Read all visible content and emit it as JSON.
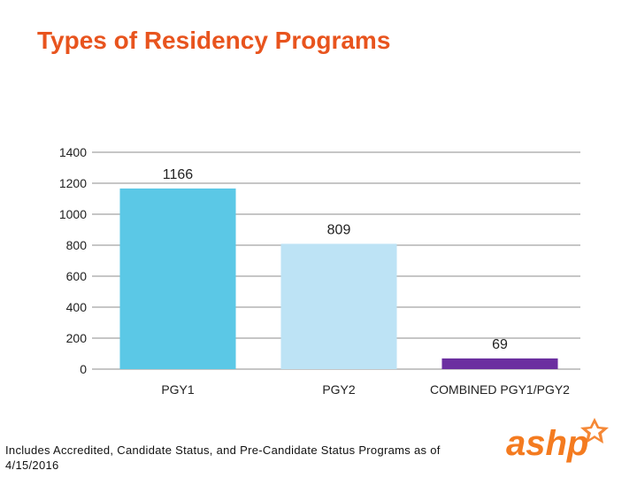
{
  "page": {
    "title": "Types of Residency Programs",
    "footnote": "Includes Accredited, Candidate Status, and Pre-Candidate Status Programs as of 4/15/2016",
    "logo_text": "ashp"
  },
  "chart_data": {
    "type": "bar",
    "title": "",
    "xlabel": "",
    "ylabel": "",
    "categories": [
      "PGY1",
      "PGY2",
      "COMBINED PGY1/PGY2"
    ],
    "values": [
      1166,
      809,
      69
    ],
    "data_labels": [
      "1166",
      "809",
      "69"
    ],
    "bar_colors": [
      "#5bc8e6",
      "#bde3f5",
      "#6b2fa0"
    ],
    "ylim": [
      0,
      1400
    ],
    "yticks": [
      0,
      200,
      400,
      600,
      800,
      1000,
      1200,
      1400
    ],
    "grid": true,
    "legend": "none"
  },
  "colors": {
    "title": "#e8541e",
    "grid": "#8c8c8c",
    "logo": "#f47b20"
  }
}
